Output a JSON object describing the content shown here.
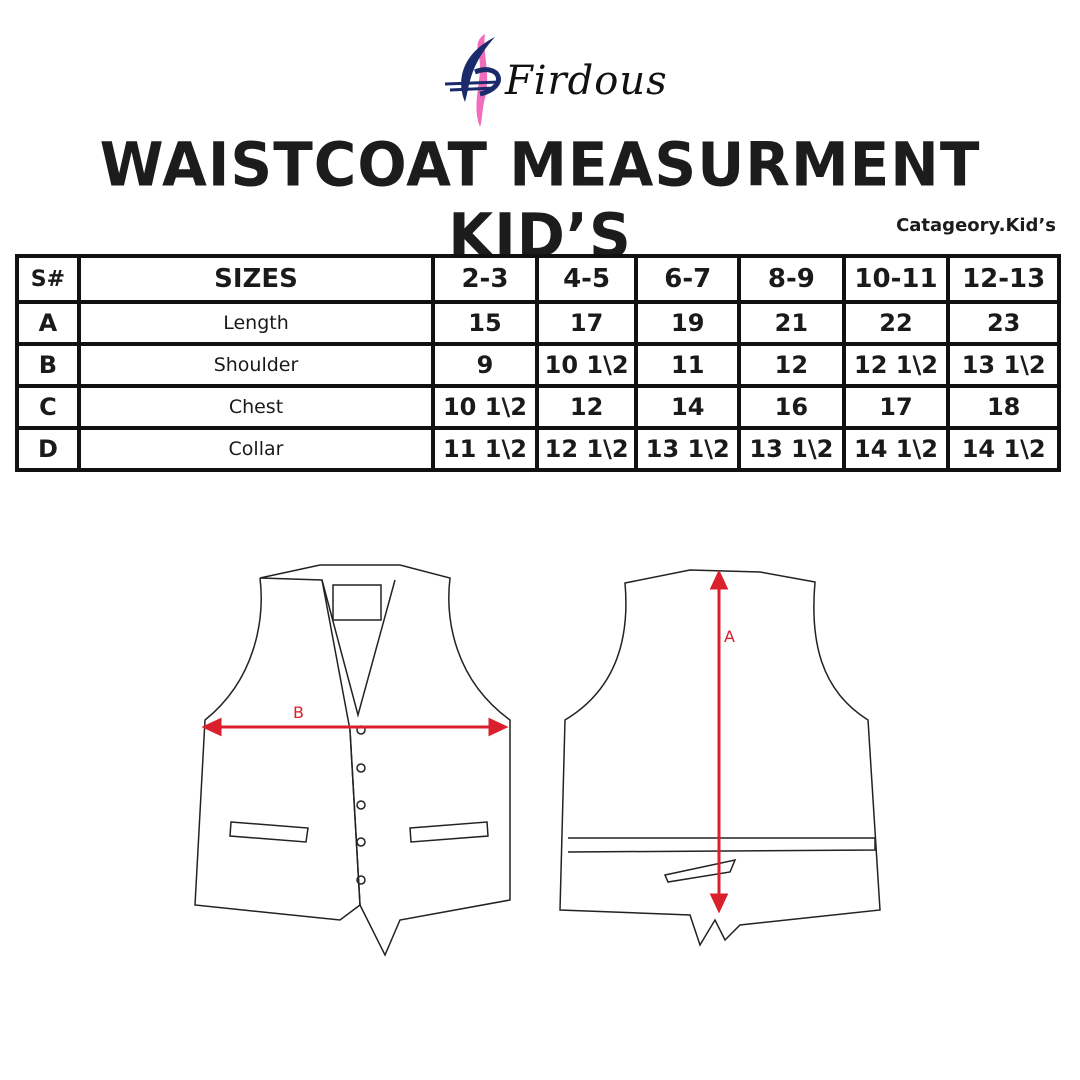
{
  "brand": {
    "logo_text": "Firdous",
    "colors": {
      "blue": "#1b2a6b",
      "pink": "#f06dbb"
    }
  },
  "title": "WAISTCOAT MEASURMENT KID’S",
  "category": "Catageory.Kid’s",
  "table": {
    "headers": [
      "S#",
      "SIZES",
      "2-3",
      "4-5",
      "6-7",
      "8-9",
      "10-11",
      "12-13"
    ],
    "rows": [
      {
        "id": "A",
        "name": "Length",
        "values": [
          "15",
          "17",
          "19",
          "21",
          "22",
          "23"
        ]
      },
      {
        "id": "B",
        "name": "Shoulder",
        "values": [
          "9",
          "10 1\\2",
          "11",
          "12",
          "12 1\\2",
          "13 1\\2"
        ]
      },
      {
        "id": "C",
        "name": "Chest",
        "values": [
          "10 1\\2",
          "12",
          "14",
          "16",
          "17",
          "18"
        ]
      },
      {
        "id": "D",
        "name": "Collar",
        "values": [
          "11 1\\2",
          "12 1\\2",
          "13 1\\2",
          "13 1\\2",
          "14 1\\2",
          "14 1\\2"
        ]
      }
    ]
  },
  "diagram": {
    "front_label": "B",
    "back_label": "A",
    "arrow_color": "#d9202c"
  }
}
